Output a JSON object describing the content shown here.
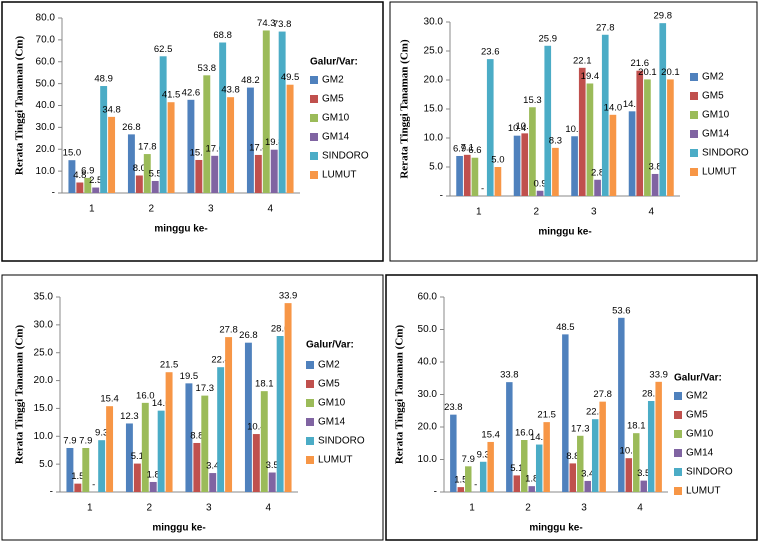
{
  "chart_data": [
    {
      "type": "bar",
      "y_label": "Rerata Tinggi Tanaman (Cm)",
      "x_label": "minggu ke-",
      "legend_title": "Galur/Var:",
      "categories": [
        "1",
        "2",
        "3",
        "4"
      ],
      "ylim": [
        0,
        80
      ],
      "yticks": [
        {
          "value": 0,
          "label": "-"
        },
        {
          "value": 10,
          "label": "10.0"
        },
        {
          "value": 20,
          "label": "20.0"
        },
        {
          "value": 30,
          "label": "30.0"
        },
        {
          "value": 40,
          "label": "40.0"
        },
        {
          "value": 50,
          "label": "50.0"
        },
        {
          "value": 60,
          "label": "60.0"
        },
        {
          "value": 70,
          "label": "70.0"
        },
        {
          "value": 80,
          "label": "80.0"
        }
      ],
      "series": [
        {
          "name": "GM2",
          "color": "#4f81bd",
          "values": [
            15,
            26.8,
            42.6,
            48.2
          ],
          "value_labels": [
            "15.0",
            "26.8",
            "42.6",
            "48.2"
          ]
        },
        {
          "name": "GM5",
          "color": "#c0504d",
          "values": [
            4.8,
            8,
            15.1,
            17.4
          ],
          "value_labels": [
            "4.8",
            "8.0",
            "15.1",
            "17.4"
          ]
        },
        {
          "name": "GM10",
          "color": "#9bbb59",
          "values": [
            6.9,
            17.8,
            53.8,
            74.3
          ],
          "value_labels": [
            "6.9",
            "17.8",
            "53.8",
            "74.3"
          ]
        },
        {
          "name": "GM14",
          "color": "#8064a2",
          "values": [
            2.5,
            5.5,
            17,
            19.8
          ],
          "value_labels": [
            "2.5",
            "5.5",
            "17.0",
            "19.8"
          ]
        },
        {
          "name": "SINDORO",
          "color": "#4bacc6",
          "values": [
            48.9,
            62.5,
            68.8,
            73.8
          ],
          "value_labels": [
            "48.9",
            "62.5",
            "68.8",
            "73.8"
          ]
        },
        {
          "name": "LUMUT",
          "color": "#f79646",
          "values": [
            34.8,
            41.5,
            43.8,
            49.5
          ],
          "value_labels": [
            "34.8",
            "41.5",
            "43.8",
            "49.5"
          ]
        }
      ]
    },
    {
      "type": "bar",
      "y_label": "Rerata Tinggi Tanaman (Cm)",
      "x_label": "minggu ke-",
      "categories": [
        "1",
        "2",
        "3",
        "4"
      ],
      "ylim": [
        0,
        30
      ],
      "yticks": [
        {
          "value": 0,
          "label": "-"
        },
        {
          "value": 5,
          "label": "5.0"
        },
        {
          "value": 10,
          "label": "10.0"
        },
        {
          "value": 15,
          "label": "15.0"
        },
        {
          "value": 20,
          "label": "20.0"
        },
        {
          "value": 25,
          "label": "25.0"
        },
        {
          "value": 30,
          "label": "30.0"
        }
      ],
      "series": [
        {
          "name": "GM2",
          "color": "#4f81bd",
          "values": [
            6.9,
            10.4,
            10.3,
            14.6
          ],
          "value_labels": [
            "6.9",
            "10.4",
            "10.3",
            "14.6"
          ]
        },
        {
          "name": "GM5",
          "color": "#c0504d",
          "values": [
            7.1,
            10.8,
            22.1,
            21.6
          ],
          "value_labels": [
            "7.1",
            "10.8",
            "22.1",
            "21.6"
          ]
        },
        {
          "name": "GM10",
          "color": "#9bbb59",
          "values": [
            6.6,
            15.3,
            19.4,
            20.1
          ],
          "value_labels": [
            "6.6",
            "15.3",
            "19.4",
            "20.1"
          ]
        },
        {
          "name": "GM14",
          "color": "#8064a2",
          "values": [
            0,
            0.9,
            2.8,
            3.8
          ],
          "value_labels": [
            "-",
            "0.9",
            "2.8",
            "3.8"
          ]
        },
        {
          "name": "SINDORO",
          "color": "#4bacc6",
          "values": [
            23.6,
            25.9,
            27.8,
            29.8
          ],
          "value_labels": [
            "23.6",
            "25.9",
            "27.8",
            "29.8"
          ]
        },
        {
          "name": "LUMUT",
          "color": "#f79646",
          "values": [
            5,
            8.3,
            14,
            20.1
          ],
          "value_labels": [
            "5.0",
            "8.3",
            "14.0",
            "20.1"
          ]
        }
      ]
    },
    {
      "type": "bar",
      "y_label": "Rerata Tinggi Tanaman (Cm)",
      "x_label": "minggu ke-",
      "legend_title": "Galur/Var:",
      "categories": [
        "1",
        "2",
        "3",
        "4"
      ],
      "ylim": [
        0,
        35
      ],
      "yticks": [
        {
          "value": 0,
          "label": "-"
        },
        {
          "value": 5,
          "label": "5.0"
        },
        {
          "value": 10,
          "label": "10.0"
        },
        {
          "value": 15,
          "label": "15.0"
        },
        {
          "value": 20,
          "label": "20.0"
        },
        {
          "value": 25,
          "label": "25.0"
        },
        {
          "value": 30,
          "label": "30.0"
        },
        {
          "value": 35,
          "label": "35.0"
        }
      ],
      "series": [
        {
          "name": "GM2",
          "color": "#4f81bd",
          "values": [
            7.9,
            12.3,
            19.5,
            26.8
          ],
          "value_labels": [
            "7.9",
            "12.3",
            "19.5",
            "26.8"
          ]
        },
        {
          "name": "GM5",
          "color": "#c0504d",
          "values": [
            1.5,
            5.1,
            8.8,
            10.4
          ],
          "value_labels": [
            "1.5",
            "5.1",
            "8.8",
            "10.4"
          ]
        },
        {
          "name": "GM10",
          "color": "#9bbb59",
          "values": [
            7.9,
            16,
            17.3,
            18.1
          ],
          "value_labels": [
            "7.9",
            "16.0",
            "17.3",
            "18.1"
          ]
        },
        {
          "name": "GM14",
          "color": "#8064a2",
          "values": [
            0,
            1.8,
            3.4,
            3.5
          ],
          "value_labels": [
            "-",
            "1.8",
            "3.4",
            "3.5"
          ]
        },
        {
          "name": "SINDORO",
          "color": "#4bacc6",
          "values": [
            9.3,
            14.6,
            22.4,
            28
          ],
          "value_labels": [
            "9.3",
            "14.6",
            "22.4",
            "28.0"
          ]
        },
        {
          "name": "LUMUT",
          "color": "#f79646",
          "values": [
            15.4,
            21.5,
            27.8,
            33.9
          ],
          "value_labels": [
            "15.4",
            "21.5",
            "27.8",
            "33.9"
          ]
        }
      ]
    },
    {
      "type": "bar",
      "y_label": "Rerata Tinggi Tanaman (Cm)",
      "x_label": "minggu ke-",
      "legend_title": "Galur/Var:",
      "categories": [
        "1",
        "2",
        "3",
        "4"
      ],
      "ylim": [
        0,
        60
      ],
      "yticks": [
        {
          "value": 0,
          "label": "-"
        },
        {
          "value": 10,
          "label": "10.0"
        },
        {
          "value": 20,
          "label": "20.0"
        },
        {
          "value": 30,
          "label": "30.0"
        },
        {
          "value": 40,
          "label": "40.0"
        },
        {
          "value": 50,
          "label": "50.0"
        },
        {
          "value": 60,
          "label": "60.0"
        }
      ],
      "series": [
        {
          "name": "GM2",
          "color": "#4f81bd",
          "values": [
            23.8,
            33.8,
            48.5,
            53.6
          ],
          "value_labels": [
            "23.8",
            "33.8",
            "48.5",
            "53.6"
          ]
        },
        {
          "name": "GM5",
          "color": "#c0504d",
          "values": [
            1.5,
            5.1,
            8.8,
            10.4
          ],
          "value_labels": [
            "1.5",
            "5.1",
            "8.8",
            "10.4"
          ]
        },
        {
          "name": "GM10",
          "color": "#9bbb59",
          "values": [
            7.9,
            16,
            17.3,
            18.1
          ],
          "value_labels": [
            "7.9",
            "16.0",
            "17.3",
            "18.1"
          ]
        },
        {
          "name": "GM14",
          "color": "#8064a2",
          "values": [
            0,
            1.8,
            3.4,
            3.5
          ],
          "value_labels": [
            "-",
            "1.8",
            "3.4",
            "3.5"
          ]
        },
        {
          "name": "SINDORO",
          "color": "#4bacc6",
          "values": [
            9.3,
            14.6,
            22.4,
            28
          ],
          "value_labels": [
            "9.3",
            "14.6",
            "22.4",
            "28.0"
          ]
        },
        {
          "name": "LUMUT",
          "color": "#f79646",
          "values": [
            15.4,
            21.5,
            27.8,
            33.9
          ],
          "value_labels": [
            "15.4",
            "21.5",
            "27.8",
            "33.9"
          ]
        }
      ]
    }
  ]
}
